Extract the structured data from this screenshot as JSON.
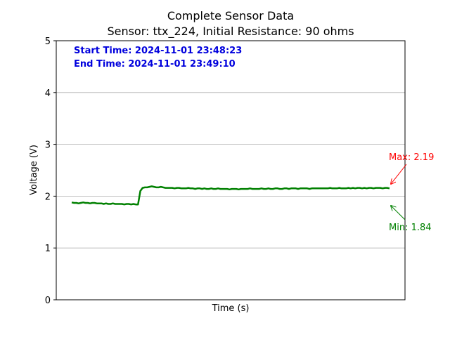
{
  "chart_data": {
    "type": "line",
    "title": "Complete Sensor Data",
    "subtitle": "Sensor: ttx_224, Initial Resistance: 90 ohms",
    "xlabel": "Time (s)",
    "ylabel": "Voltage (V)",
    "ylim": [
      0,
      5
    ],
    "yticks": [
      "0",
      "1",
      "2",
      "3",
      "4",
      "5"
    ],
    "x_ticks_shown": false,
    "grid": "horizontal",
    "info": {
      "start": "Start Time: 2024-11-01 23:48:23",
      "end": "End Time: 2024-11-01 23:49:10"
    },
    "series": [
      {
        "color": "#008000",
        "values": [
          1.88,
          1.87,
          1.87,
          1.86,
          1.87,
          1.88,
          1.87,
          1.87,
          1.86,
          1.87,
          1.87,
          1.86,
          1.86,
          1.86,
          1.85,
          1.86,
          1.85,
          1.85,
          1.86,
          1.85,
          1.85,
          1.85,
          1.85,
          1.84,
          1.85,
          1.85,
          1.84,
          1.85,
          1.84,
          1.84,
          2.1,
          2.16,
          2.17,
          2.17,
          2.18,
          2.19,
          2.18,
          2.17,
          2.17,
          2.18,
          2.17,
          2.16,
          2.16,
          2.16,
          2.16,
          2.15,
          2.16,
          2.16,
          2.15,
          2.15,
          2.15,
          2.16,
          2.15,
          2.15,
          2.14,
          2.15,
          2.15,
          2.14,
          2.15,
          2.14,
          2.14,
          2.15,
          2.14,
          2.14,
          2.15,
          2.14,
          2.14,
          2.14,
          2.14,
          2.13,
          2.14,
          2.14,
          2.14,
          2.13,
          2.14,
          2.14,
          2.14,
          2.14,
          2.15,
          2.14,
          2.14,
          2.14,
          2.14,
          2.15,
          2.14,
          2.14,
          2.15,
          2.14,
          2.14,
          2.15,
          2.15,
          2.14,
          2.14,
          2.15,
          2.15,
          2.14,
          2.15,
          2.15,
          2.15,
          2.14,
          2.15,
          2.15,
          2.15,
          2.15,
          2.14,
          2.15,
          2.15,
          2.15,
          2.15,
          2.15,
          2.15,
          2.15,
          2.15,
          2.16,
          2.15,
          2.15,
          2.15,
          2.16,
          2.15,
          2.15,
          2.15,
          2.16,
          2.15,
          2.16,
          2.15,
          2.16,
          2.16,
          2.15,
          2.16,
          2.15,
          2.16,
          2.16,
          2.15,
          2.16,
          2.16,
          2.16,
          2.15,
          2.16,
          2.16,
          2.15
        ]
      }
    ],
    "annotations": [
      {
        "label": "Max: 2.19",
        "color": "#ff0000"
      },
      {
        "label": "Min: 1.84",
        "color": "#008000"
      }
    ]
  }
}
